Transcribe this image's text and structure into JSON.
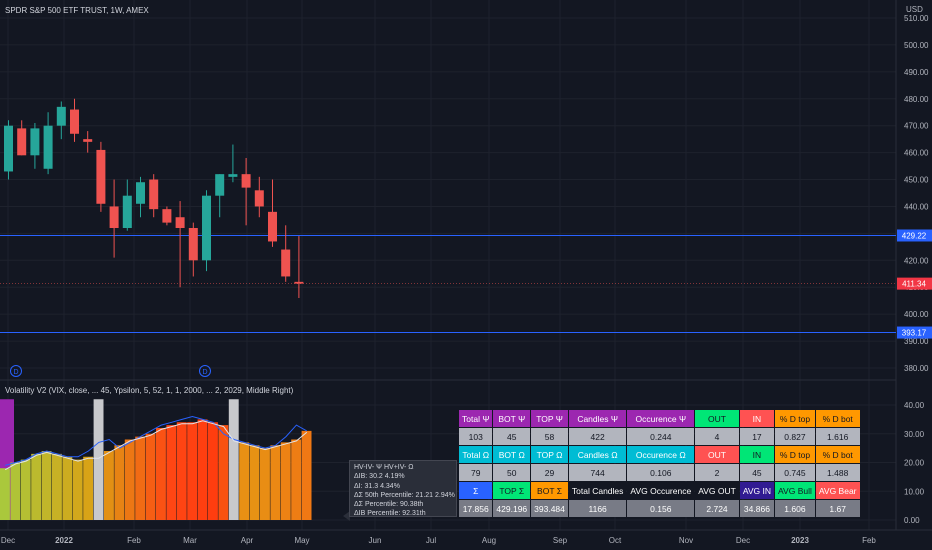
{
  "header": {
    "symbol_title": "SPDR S&P 500 ETF TRUST, 1W, AMEX",
    "currency": "USD"
  },
  "price_axis": {
    "ticks": [
      "510.00",
      "500.00",
      "490.00",
      "480.00",
      "470.00",
      "460.00",
      "450.00",
      "440.00",
      "430.00",
      "420.00",
      "410.00",
      "400.00",
      "390.00",
      "380.00"
    ],
    "badges": [
      {
        "name": "upper-level-badge",
        "value": "429.22",
        "color": "#2962ff"
      },
      {
        "name": "last-price-badge",
        "value": "411.34",
        "color": "#f23645"
      },
      {
        "name": "lower-level-badge",
        "value": "393.17",
        "color": "#2962ff"
      }
    ]
  },
  "indicator": {
    "label": "Volatility V2 (VIX, close, ... 45, Ypsilon, 5, 52, 1, 1, 2000, ... 2, 2029, Middle Right)",
    "axis_ticks": [
      "40.00",
      "30.00",
      "20.00",
      "10.00",
      "0.00"
    ],
    "dividend_markers": [
      "D",
      "D"
    ]
  },
  "time_axis": {
    "labels": [
      "Dec",
      "2022",
      "Feb",
      "Mar",
      "Apr",
      "May",
      "Jun",
      "Jul",
      "Aug",
      "Sep",
      "Oct",
      "Nov",
      "Dec",
      "2023",
      "Feb"
    ]
  },
  "chart_data": [
    {
      "type": "candlestick",
      "title": "SPDR S&P 500 ETF TRUST, 1W, AMEX",
      "x_unit": "week",
      "ylim": [
        375,
        515
      ],
      "grid": true,
      "candles": [
        {
          "o": 453,
          "h": 472,
          "l": 450,
          "c": 470
        },
        {
          "o": 469,
          "h": 472,
          "l": 459,
          "c": 459
        },
        {
          "o": 459,
          "h": 471,
          "l": 454,
          "c": 469
        },
        {
          "o": 454,
          "h": 475,
          "l": 452,
          "c": 470
        },
        {
          "o": 470,
          "h": 479,
          "l": 465,
          "c": 477
        },
        {
          "o": 476,
          "h": 480,
          "l": 464,
          "c": 467
        },
        {
          "o": 465,
          "h": 468,
          "l": 460,
          "c": 464
        },
        {
          "o": 461,
          "h": 464,
          "l": 438,
          "c": 441
        },
        {
          "o": 440,
          "h": 450,
          "l": 421,
          "c": 432
        },
        {
          "o": 432,
          "h": 450,
          "l": 431,
          "c": 444
        },
        {
          "o": 441,
          "h": 451,
          "l": 436,
          "c": 449
        },
        {
          "o": 450,
          "h": 452,
          "l": 436,
          "c": 439
        },
        {
          "o": 439,
          "h": 440,
          "l": 433,
          "c": 434
        },
        {
          "o": 436,
          "h": 442,
          "l": 410,
          "c": 432
        },
        {
          "o": 432,
          "h": 434,
          "l": 414,
          "c": 420
        },
        {
          "o": 420,
          "h": 446,
          "l": 416,
          "c": 444
        },
        {
          "o": 444,
          "h": 452,
          "l": 436,
          "c": 452
        },
        {
          "o": 451,
          "h": 463,
          "l": 449,
          "c": 452
        },
        {
          "o": 452,
          "h": 458,
          "l": 433,
          "c": 447
        },
        {
          "o": 446,
          "h": 451,
          "l": 436,
          "c": 440
        },
        {
          "o": 438,
          "h": 450,
          "l": 425,
          "c": 427
        },
        {
          "o": 424,
          "h": 433,
          "l": 412,
          "c": 414
        },
        {
          "o": 412,
          "h": 429,
          "l": 406,
          "c": 411.34
        }
      ],
      "levels": [
        429.22,
        393.17
      ],
      "last_price": 411.34
    },
    {
      "type": "bar",
      "title": "Volatility V2 (VIX, close, ... 45, Ypsilon, 5, 52, 1, 1, 2000, ... 2, 2029, Middle Right)",
      "ylim": [
        0,
        42
      ],
      "values": [
        18,
        20,
        21,
        23,
        24,
        23,
        22,
        21,
        22,
        22,
        24,
        26,
        28,
        29,
        30,
        32,
        33,
        34,
        34,
        35,
        34,
        33,
        28,
        27,
        26,
        25,
        26,
        27,
        28,
        31
      ],
      "line_values": [
        19,
        20,
        21,
        23,
        24,
        23,
        22,
        22,
        24,
        27,
        28,
        25,
        27,
        29,
        31,
        33,
        34,
        35,
        36,
        35,
        34,
        30,
        28,
        27,
        26,
        25,
        26,
        29,
        33,
        31
      ],
      "highlight_bars": [
        9,
        22
      ]
    }
  ],
  "stats_table": {
    "rows": [
      [
        {
          "text": "Total Ψ",
          "bg": "#9c27b0",
          "fg": "#ffffff"
        },
        {
          "text": "BOT Ψ",
          "bg": "#9c27b0",
          "fg": "#ffffff"
        },
        {
          "text": "TOP Ψ",
          "bg": "#9c27b0",
          "fg": "#ffffff"
        },
        {
          "text": "Candles Ψ",
          "bg": "#9c27b0",
          "fg": "#ffffff"
        },
        {
          "text": "Occurence Ψ",
          "bg": "#9c27b0",
          "fg": "#ffffff"
        },
        {
          "text": "OUT",
          "bg": "#00e676",
          "fg": "#131722"
        },
        {
          "text": "IN",
          "bg": "#ff5252",
          "fg": "#ffffff"
        },
        {
          "text": "% D top",
          "bg": "#ff9800",
          "fg": "#131722"
        },
        {
          "text": "% D bot",
          "bg": "#ff9800",
          "fg": "#131722"
        }
      ],
      [
        {
          "text": "103",
          "bg": "#b2b5be",
          "fg": "#131722"
        },
        {
          "text": "45",
          "bg": "#b2b5be",
          "fg": "#131722"
        },
        {
          "text": "58",
          "bg": "#b2b5be",
          "fg": "#131722"
        },
        {
          "text": "422",
          "bg": "#b2b5be",
          "fg": "#131722"
        },
        {
          "text": "0.244",
          "bg": "#b2b5be",
          "fg": "#131722"
        },
        {
          "text": "4",
          "bg": "#b2b5be",
          "fg": "#131722"
        },
        {
          "text": "17",
          "bg": "#b2b5be",
          "fg": "#131722"
        },
        {
          "text": "0.827",
          "bg": "#b2b5be",
          "fg": "#131722"
        },
        {
          "text": "1.616",
          "bg": "#b2b5be",
          "fg": "#131722"
        }
      ],
      [
        {
          "text": "Total Ω",
          "bg": "#00bcd4",
          "fg": "#ffffff"
        },
        {
          "text": "BOT Ω",
          "bg": "#00bcd4",
          "fg": "#ffffff"
        },
        {
          "text": "TOP Ω",
          "bg": "#00bcd4",
          "fg": "#ffffff"
        },
        {
          "text": "Candles Ω",
          "bg": "#00bcd4",
          "fg": "#ffffff"
        },
        {
          "text": "Occurence Ω",
          "bg": "#00bcd4",
          "fg": "#ffffff"
        },
        {
          "text": "OUT",
          "bg": "#ff5252",
          "fg": "#ffffff"
        },
        {
          "text": "IN",
          "bg": "#00e676",
          "fg": "#131722"
        },
        {
          "text": "% D top",
          "bg": "#ff9800",
          "fg": "#131722"
        },
        {
          "text": "% D bot",
          "bg": "#ff9800",
          "fg": "#131722"
        }
      ],
      [
        {
          "text": "79",
          "bg": "#b2b5be",
          "fg": "#131722"
        },
        {
          "text": "50",
          "bg": "#b2b5be",
          "fg": "#131722"
        },
        {
          "text": "29",
          "bg": "#b2b5be",
          "fg": "#131722"
        },
        {
          "text": "744",
          "bg": "#b2b5be",
          "fg": "#131722"
        },
        {
          "text": "0.106",
          "bg": "#b2b5be",
          "fg": "#131722"
        },
        {
          "text": "2",
          "bg": "#b2b5be",
          "fg": "#131722"
        },
        {
          "text": "45",
          "bg": "#b2b5be",
          "fg": "#131722"
        },
        {
          "text": "0.745",
          "bg": "#b2b5be",
          "fg": "#131722"
        },
        {
          "text": "1.488",
          "bg": "#b2b5be",
          "fg": "#131722"
        }
      ],
      [
        {
          "text": "Σ",
          "bg": "#2962ff",
          "fg": "#ffffff"
        },
        {
          "text": "TOP Σ",
          "bg": "#00e676",
          "fg": "#131722"
        },
        {
          "text": "BOT Σ",
          "bg": "#ff9800",
          "fg": "#131722"
        },
        {
          "text": "Total Candles",
          "bg": "#131722",
          "fg": "#ffffff"
        },
        {
          "text": "AVG Occurence",
          "bg": "#131722",
          "fg": "#ffffff"
        },
        {
          "text": "AVG OUT",
          "bg": "#131722",
          "fg": "#ffffff"
        },
        {
          "text": "AVG IN",
          "bg": "#311b92",
          "fg": "#ffffff"
        },
        {
          "text": "AVG Bull",
          "bg": "#00e676",
          "fg": "#131722"
        },
        {
          "text": "AVG Bear",
          "bg": "#ff5252",
          "fg": "#ffffff"
        }
      ],
      [
        {
          "text": "17.856",
          "bg": "#787b86",
          "fg": "#ffffff"
        },
        {
          "text": "429.196",
          "bg": "#787b86",
          "fg": "#ffffff"
        },
        {
          "text": "393.484",
          "bg": "#787b86",
          "fg": "#ffffff"
        },
        {
          "text": "1166",
          "bg": "#787b86",
          "fg": "#ffffff"
        },
        {
          "text": "0.156",
          "bg": "#787b86",
          "fg": "#ffffff"
        },
        {
          "text": "2.724",
          "bg": "#787b86",
          "fg": "#ffffff"
        },
        {
          "text": "34.866",
          "bg": "#787b86",
          "fg": "#ffffff"
        },
        {
          "text": "1.606",
          "bg": "#787b86",
          "fg": "#ffffff"
        },
        {
          "text": "1.67",
          "bg": "#787b86",
          "fg": "#ffffff"
        }
      ]
    ]
  },
  "tooltip": {
    "lines": [
      "HV-IV- Ψ  HV+IV- Ω",
      "ΔIB: 30.2  4.19%",
      "ΔI: 31.3  4.34%",
      "ΔΣ 50th Percentile: 21.21  2.94%",
      "ΔΣ Percentile: 90.38th",
      "ΔIB Percentile: 92.31th"
    ]
  },
  "colors": {
    "background": "#131722",
    "grid": "#1e222d",
    "bull": "#26a69a",
    "bear": "#ef5350",
    "level_line": "#2962ff",
    "indicator_line": "#2962ff",
    "vol_line": "#e0e3eb",
    "highlight_bar": "#c8c9cc",
    "left_band": "#9c27b0"
  }
}
